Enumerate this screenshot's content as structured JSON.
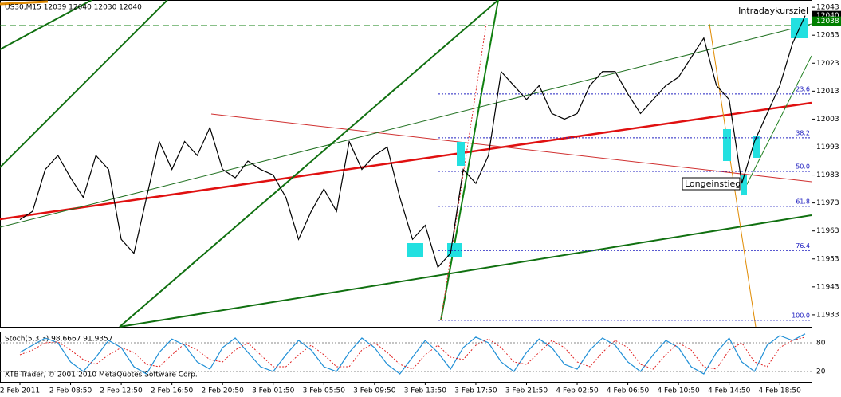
{
  "chart_data": {
    "type": "line",
    "title": "US30,M15  12039 12040 12030 12040",
    "annotations": {
      "target": "Intradaykursziel",
      "entry": "Longeinstieg"
    },
    "categories": [
      "2 Feb 2011",
      null,
      null,
      null,
      "2 Feb 08:50",
      null,
      null,
      null,
      "2 Feb 12:50",
      null,
      null,
      null,
      "2 Feb 16:50",
      null,
      null,
      null,
      "2 Feb 20:50",
      null,
      null,
      null,
      "3 Feb 01:50",
      null,
      null,
      null,
      "3 Feb 05:50",
      null,
      null,
      null,
      "3 Feb 09:50",
      null,
      null,
      null,
      "3 Feb 13:50",
      null,
      null,
      null,
      "3 Feb 17:50",
      null,
      null,
      null,
      "3 Feb 21:50",
      null,
      null,
      null,
      "4 Feb 02:50",
      null,
      null,
      null,
      "4 Feb 06:50",
      null,
      null,
      null,
      "4 Feb 10:50",
      null,
      null,
      null,
      "4 Feb 14:50",
      null,
      null,
      null,
      "4 Feb 18:50",
      null,
      null
    ],
    "series": [
      {
        "name": "US30,M15",
        "color": "#000000",
        "values": [
          11967,
          11970,
          11985,
          11990,
          11982,
          11975,
          11990,
          11985,
          11960,
          11955,
          11975,
          11995,
          11985,
          11995,
          11990,
          12000,
          11985,
          11982,
          11988,
          11985,
          11983,
          11975,
          11960,
          11970,
          11978,
          11970,
          11995,
          11985,
          11990,
          11993,
          11975,
          11960,
          11965,
          11950,
          11955,
          11985,
          11980,
          11990,
          12020,
          12015,
          12010,
          12015,
          12005,
          12003,
          12005,
          12015,
          12020,
          12020,
          12012,
          12005,
          12010,
          12015,
          12018,
          12025,
          12032,
          12015,
          12010,
          11980,
          11995,
          12005,
          12015,
          12030,
          12040
        ]
      }
    ],
    "ylim": [
      11928.7,
      12045.6
    ],
    "yticks": [
      12043,
      12033,
      12023,
      12013,
      12003,
      11993,
      11983,
      11973,
      11963,
      11953,
      11943,
      11933
    ],
    "price_labels": [
      {
        "value": 12040,
        "background": "#000000"
      },
      {
        "value": 12038,
        "background": "#008000"
      }
    ],
    "fibo_levels": [
      {
        "label": "23.6",
        "price": 12012
      },
      {
        "label": "38.2",
        "price": 11996.3
      },
      {
        "label": "50.0",
        "price": 11984.3
      },
      {
        "label": "61.8",
        "price": 11971.8
      },
      {
        "label": "76.4",
        "price": 11956
      },
      {
        "label": "100.0",
        "price": 11931
      }
    ],
    "indicator": {
      "title": "Stoch(5,3,3) 98.6667 91.9357",
      "ylim": [
        0,
        100
      ],
      "yticks": [
        80,
        20
      ],
      "series": [
        {
          "name": "Main",
          "color": "#1f8fd6",
          "values": [
            60,
            75,
            90,
            80,
            40,
            20,
            50,
            85,
            70,
            30,
            15,
            60,
            88,
            75,
            40,
            25,
            70,
            90,
            60,
            30,
            20,
            55,
            85,
            65,
            30,
            20,
            60,
            90,
            70,
            35,
            15,
            50,
            85,
            60,
            25,
            70,
            92,
            80,
            40,
            20,
            60,
            88,
            70,
            35,
            25,
            65,
            90,
            75,
            40,
            20,
            55,
            85,
            70,
            30,
            15,
            60,
            90,
            40,
            20,
            75,
            95,
            85,
            98.6667
          ]
        },
        {
          "name": "Signal",
          "color": "#e02020",
          "values": [
            55,
            65,
            80,
            82,
            65,
            45,
            35,
            55,
            70,
            60,
            35,
            30,
            55,
            78,
            65,
            45,
            40,
            65,
            80,
            55,
            30,
            30,
            55,
            75,
            55,
            30,
            30,
            65,
            80,
            60,
            35,
            25,
            55,
            75,
            50,
            45,
            75,
            88,
            70,
            40,
            35,
            60,
            85,
            70,
            40,
            30,
            60,
            85,
            70,
            35,
            25,
            55,
            80,
            65,
            30,
            25,
            65,
            80,
            40,
            30,
            70,
            85,
            91.9357
          ]
        }
      ]
    },
    "footer": "XTB-Trader, © 2001-2010 MetaQuotes Software Corp."
  }
}
